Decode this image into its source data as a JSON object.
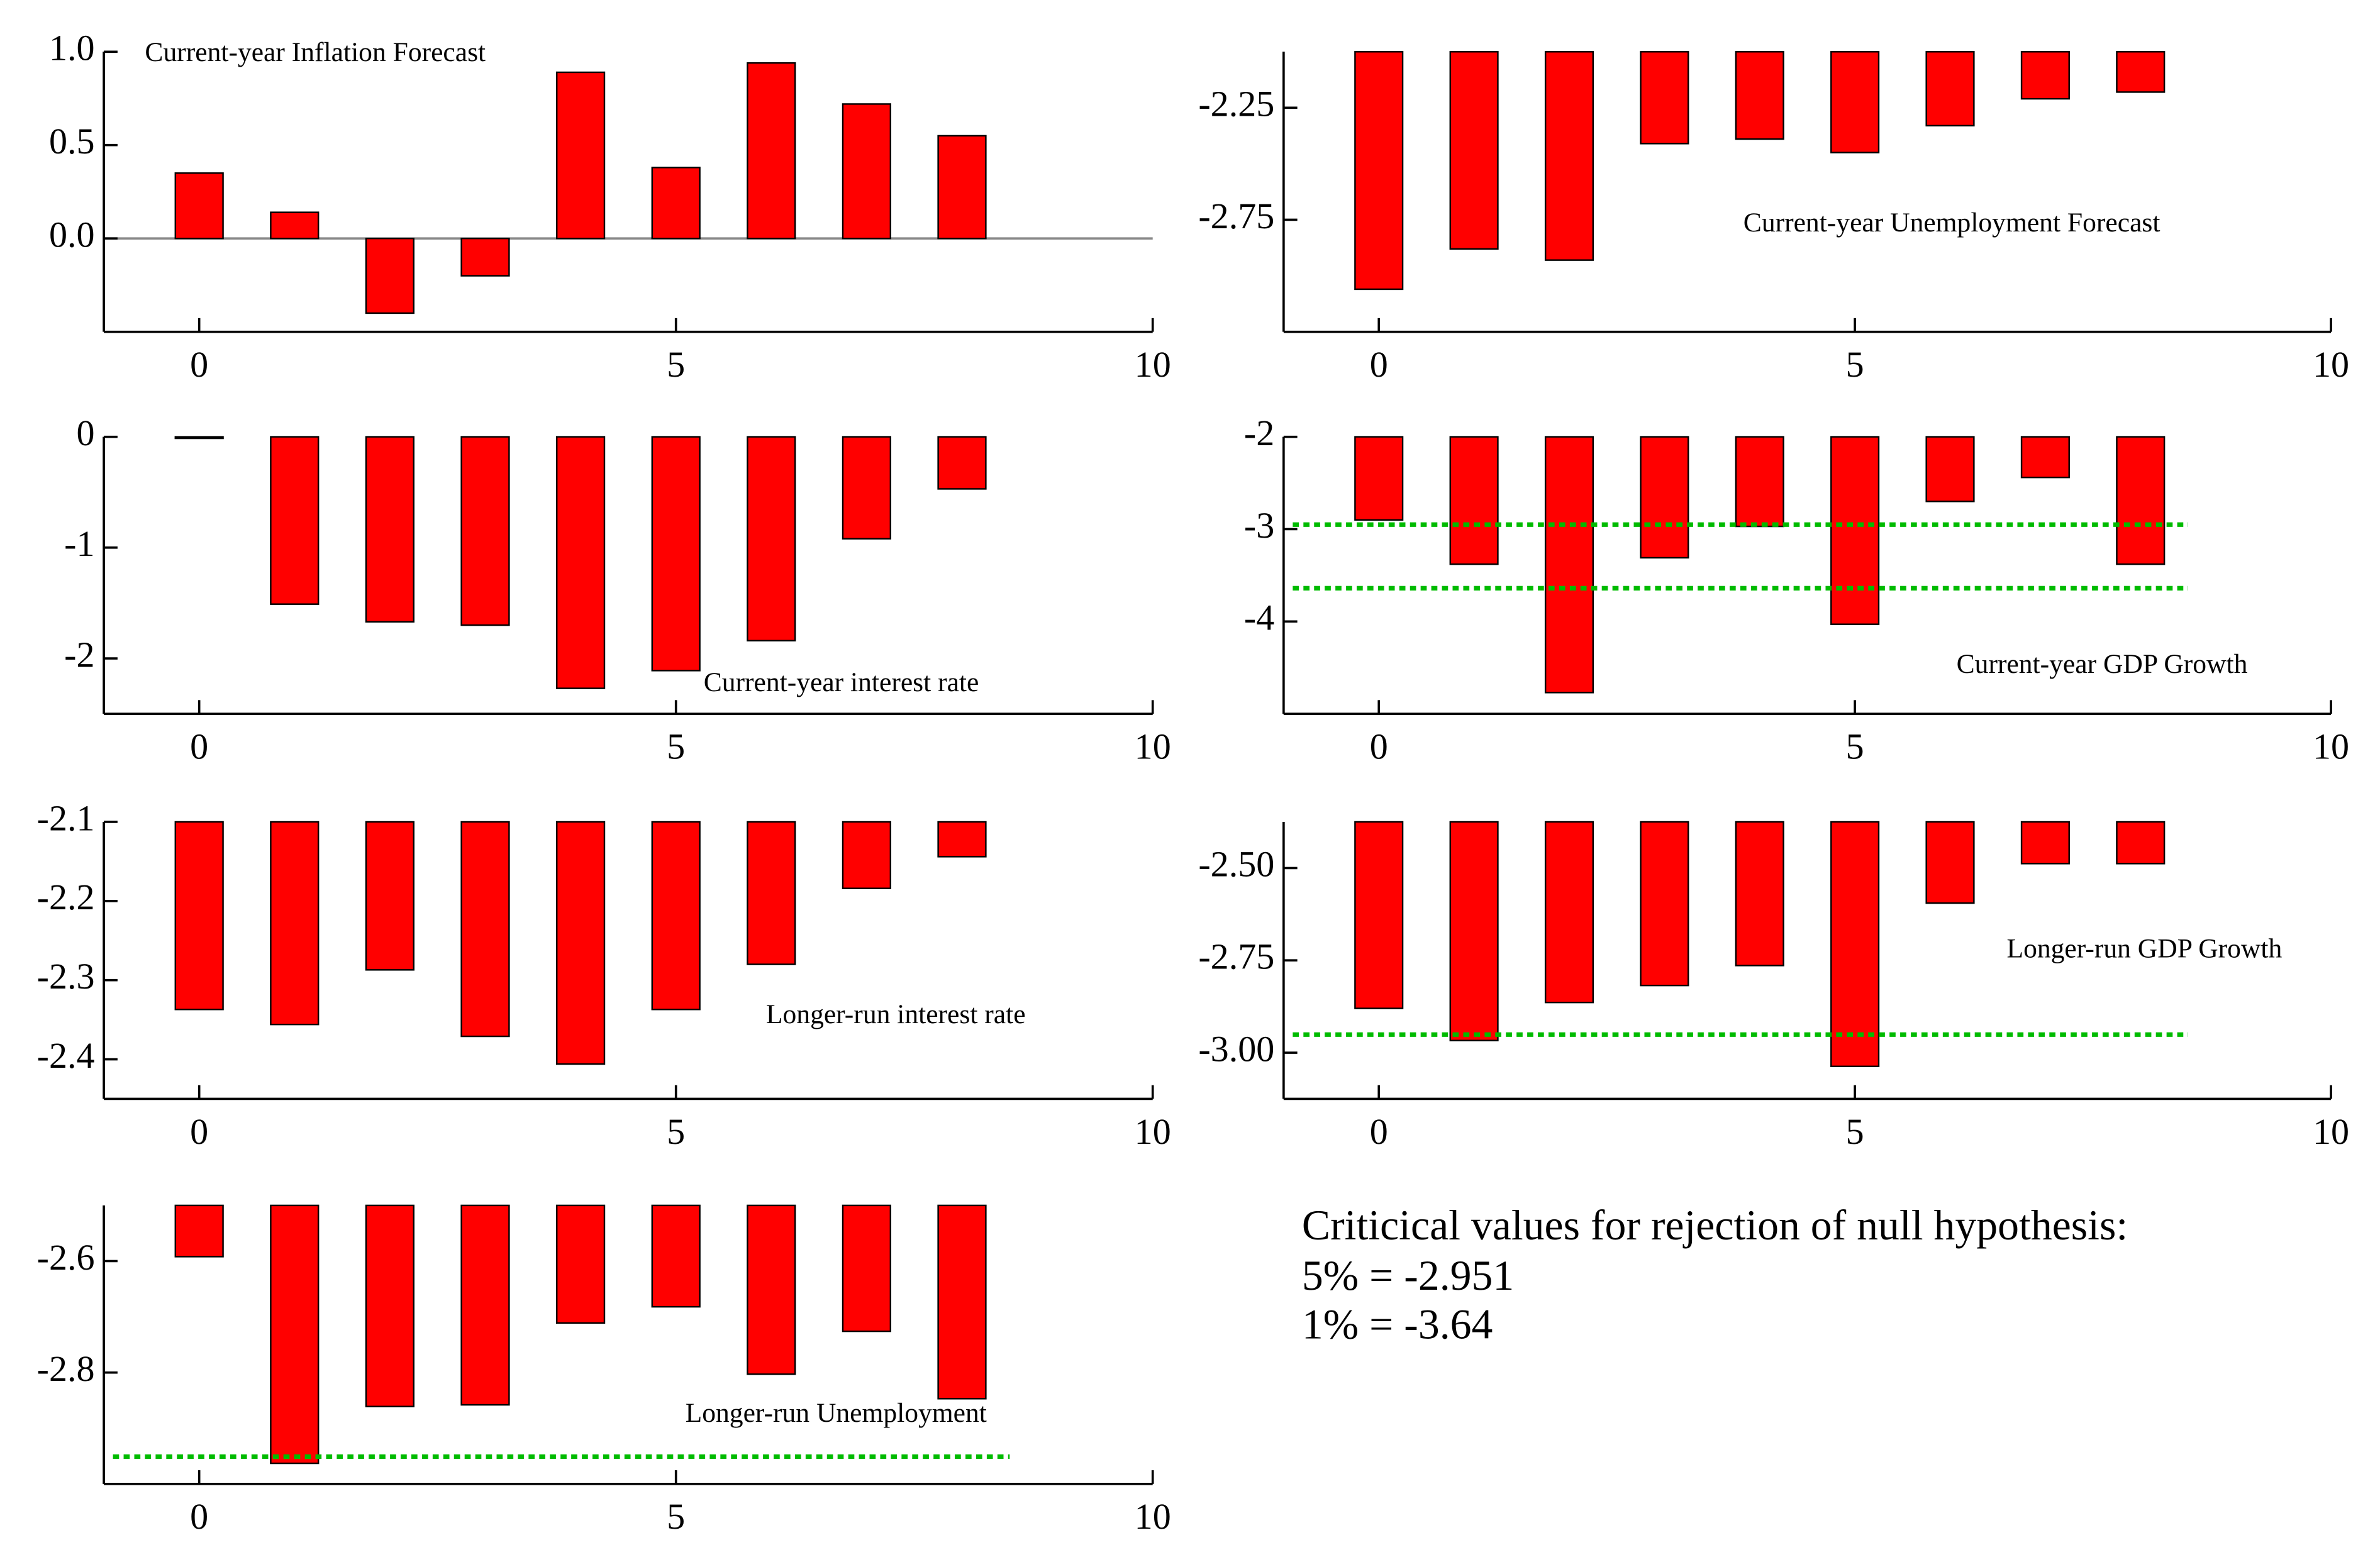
{
  "chart_data": [
    {
      "type": "bar",
      "title": "Current-year Inflation Forecast",
      "x": [
        0,
        1,
        2,
        3,
        4,
        5,
        6,
        7,
        8
      ],
      "values": [
        0.35,
        0.14,
        -0.4,
        -0.2,
        0.89,
        0.38,
        0.94,
        0.72,
        0.55
      ],
      "color": "#ff0000",
      "xlim": [
        -1,
        10
      ],
      "xticks": [
        0,
        5,
        10
      ],
      "ylim": [
        -0.5,
        1.0
      ],
      "yticks": [
        {
          "value": 0,
          "label": "0.0"
        },
        {
          "value": 0.5,
          "label": "0.5"
        },
        {
          "value": 1.0,
          "label": "1.0"
        }
      ],
      "zero_line": true
    },
    {
      "type": "bar",
      "title": "Current-year Unemployment Forecast",
      "x": [
        0,
        1,
        2,
        3,
        4,
        5,
        6,
        7,
        8
      ],
      "values": [
        -3.06,
        -2.88,
        -2.93,
        -2.41,
        -2.39,
        -2.45,
        -2.33,
        -2.21,
        -2.18
      ],
      "color": "#ff0000",
      "xlim": [
        -1,
        10
      ],
      "xticks": [
        0,
        5,
        10
      ],
      "ylim": [
        -3.25,
        -2.0
      ],
      "yticks": [
        -2.25,
        -2.75
      ]
    },
    {
      "type": "bar",
      "title": "Current-year interest rate",
      "x": [
        0,
        1,
        2,
        3,
        4,
        5,
        6,
        7,
        8
      ],
      "values": [
        -0.01,
        -1.51,
        -1.67,
        -1.7,
        -2.27,
        -2.11,
        -1.84,
        -0.92,
        -0.47
      ],
      "color": "#ff0000",
      "xlim": [
        -1,
        10
      ],
      "xticks": [
        0,
        5,
        10
      ],
      "ylim": [
        -2.5,
        0
      ],
      "yticks": [
        0,
        -1,
        -2
      ]
    },
    {
      "type": "bar",
      "title": "Current-year GDP Growth",
      "x": [
        0,
        1,
        2,
        3,
        4,
        5,
        6,
        7,
        8
      ],
      "values": [
        -2.9,
        -3.38,
        -4.77,
        -3.31,
        -2.97,
        -4.03,
        -2.7,
        -2.44,
        -3.38
      ],
      "color": "#ff0000",
      "xlim": [
        -1,
        10
      ],
      "xticks": [
        0,
        5,
        10
      ],
      "ylim": [
        -5,
        -2
      ],
      "yticks": [
        -2,
        -3,
        -4
      ],
      "reference_lines": [
        -2.951,
        -3.64
      ],
      "reference_color": "#00bb00"
    },
    {
      "type": "bar",
      "title": "Longer-run interest rate",
      "x": [
        0,
        1,
        2,
        3,
        4,
        5,
        6,
        7,
        8
      ],
      "values": [
        -2.337,
        -2.356,
        -2.287,
        -2.371,
        -2.406,
        -2.337,
        -2.28,
        -2.184,
        -2.144
      ],
      "color": "#ff0000",
      "xlim": [
        -1,
        10
      ],
      "xticks": [
        0,
        5,
        10
      ],
      "ylim": [
        -2.45,
        -2.1
      ],
      "yticks": [
        -2.1,
        -2.2,
        -2.3,
        -2.4
      ]
    },
    {
      "type": "bar",
      "title": "Longer-run GDP Growth",
      "x": [
        0,
        1,
        2,
        3,
        4,
        5,
        6,
        7,
        8
      ],
      "values": [
        -2.88,
        -2.967,
        -2.864,
        -2.818,
        -2.764,
        -3.037,
        -2.595,
        -2.488,
        -2.488
      ],
      "color": "#ff0000",
      "xlim": [
        -1,
        10
      ],
      "xticks": [
        0,
        5,
        10
      ],
      "ylim": [
        -3.125,
        -2.375
      ],
      "yticks": [
        {
          "value": -2.5,
          "label": "-2.50"
        },
        -2.75,
        {
          "value": -3.0,
          "label": "-3.00"
        }
      ],
      "reference_lines": [
        -2.951
      ],
      "reference_color": "#00bb00"
    },
    {
      "type": "bar",
      "title": "Longer-run Unemployment",
      "x": [
        0,
        1,
        2,
        3,
        4,
        5,
        6,
        7,
        8
      ],
      "values": [
        -2.592,
        -2.963,
        -2.861,
        -2.858,
        -2.711,
        -2.682,
        -2.803,
        -2.726,
        -2.847
      ],
      "color": "#ff0000",
      "xlim": [
        -1,
        10
      ],
      "xticks": [
        0,
        5,
        10
      ],
      "ylim": [
        -3.0,
        -2.5
      ],
      "yticks": [
        -2.6,
        -2.8
      ],
      "reference_lines": [
        -2.951
      ],
      "reference_color": "#00bb00"
    }
  ],
  "note": {
    "lines": [
      "Criticical values for rejection of null hypothesis:",
      "5% = -2.951",
      "1% = -3.64"
    ]
  }
}
